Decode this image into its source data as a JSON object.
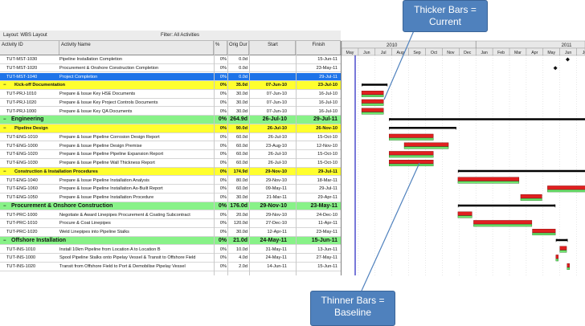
{
  "toolbar": {
    "layout_label": "Layout: WBS Layout",
    "filter_label": "Filter: All Activities"
  },
  "columns": {
    "id": "Activity ID",
    "name": "Activity Name",
    "pct": "%",
    "dur": "Orig Dur",
    "start": "Start",
    "finish": "Finish"
  },
  "rows": [
    {
      "type": "task",
      "id": "TUT-MST-1030",
      "name": "Pipeline Installation Completion",
      "pct": "0%",
      "dur": "0.0d",
      "start": "",
      "finish": "15-Jun-11"
    },
    {
      "type": "task",
      "id": "TUT-MST-1020",
      "name": "Procurement & Onshore Construction Completion",
      "pct": "0%",
      "dur": "0.0d",
      "start": "",
      "finish": "23-May-11"
    },
    {
      "type": "selected",
      "id": "TUT-MST-1040",
      "name": "Project Completion",
      "pct": "0%",
      "dur": "0.0d",
      "start": "",
      "finish": "29-Jul-11"
    },
    {
      "type": "yellow",
      "id": "",
      "name": "Kick-off Documentation",
      "pct": "0%",
      "dur": "35.0d",
      "start": "07-Jun-10",
      "finish": "23-Jul-10"
    },
    {
      "type": "task",
      "id": "TUT-PRJ-1010",
      "name": "Prepare & Issue Key HSE Documents",
      "pct": "0%",
      "dur": "30.0d",
      "start": "07-Jun-10",
      "finish": "16-Jul-10"
    },
    {
      "type": "task",
      "id": "TUT-PRJ-1020",
      "name": "Prepare & Issue Key Project Controls Documents",
      "pct": "0%",
      "dur": "30.0d",
      "start": "07-Jun-10",
      "finish": "16-Jul-10"
    },
    {
      "type": "task",
      "id": "TUT-PRJ-1000",
      "name": "Prepare & Issue Key QA Documents",
      "pct": "0%",
      "dur": "30.0d",
      "start": "07-Jun-10",
      "finish": "16-Jul-10"
    },
    {
      "type": "green",
      "id": "",
      "name": "Engineering",
      "pct": "0%",
      "dur": "264.9d",
      "start": "26-Jul-10",
      "finish": "29-Jul-11"
    },
    {
      "type": "yellow",
      "id": "",
      "name": "Pipeline Design",
      "pct": "0%",
      "dur": "90.0d",
      "start": "26-Jul-10",
      "finish": "26-Nov-10"
    },
    {
      "type": "task",
      "id": "TUT-ENG-1010",
      "name": "Prepare & Issue Pipeline Corrosion Design Report",
      "pct": "0%",
      "dur": "60.0d",
      "start": "26-Jul-10",
      "finish": "15-Oct-10"
    },
    {
      "type": "task",
      "id": "TUT-ENG-1000",
      "name": "Prepare & Issue Pipeline Design Premise",
      "pct": "0%",
      "dur": "60.0d",
      "start": "23-Aug-10",
      "finish": "12-Nov-10"
    },
    {
      "type": "task",
      "id": "TUT-ENG-1020",
      "name": "Prepare & Issue Pipeline Pipeline Expansion Report",
      "pct": "0%",
      "dur": "60.0d",
      "start": "26-Jul-10",
      "finish": "15-Oct-10"
    },
    {
      "type": "task",
      "id": "TUT-ENG-1030",
      "name": "Prepare & Issue Pipeline Wall Thickness Report",
      "pct": "0%",
      "dur": "60.0d",
      "start": "26-Jul-10",
      "finish": "15-Oct-10"
    },
    {
      "type": "yellow",
      "id": "",
      "name": "Construction & Installation Procedures",
      "pct": "0%",
      "dur": "174.9d",
      "start": "29-Nov-10",
      "finish": "29-Jul-11"
    },
    {
      "type": "task",
      "id": "TUT-ENG-1040",
      "name": "Prepare & Issue Pipeline Installation Analysis",
      "pct": "0%",
      "dur": "80.0d",
      "start": "29-Nov-10",
      "finish": "18-Mar-11"
    },
    {
      "type": "task",
      "id": "TUT-ENG-1060",
      "name": "Prepare & Issue Pipeline Installation As-Built Report",
      "pct": "0%",
      "dur": "60.0d",
      "start": "09-May-11",
      "finish": "29-Jul-11"
    },
    {
      "type": "task",
      "id": "TUT-ENG-1050",
      "name": "Prepare & Issue Pipeline Installation Procedure",
      "pct": "0%",
      "dur": "30.0d",
      "start": "21-Mar-11",
      "finish": "29-Apr-11"
    },
    {
      "type": "green",
      "id": "",
      "name": "Procurement & Onshore Construction",
      "pct": "0%",
      "dur": "176.0d",
      "start": "29-Nov-10",
      "finish": "23-May-11"
    },
    {
      "type": "task",
      "id": "TUT-PRC-1000",
      "name": "Negotiate & Award Linepipes Procurement & Coating Subcontract",
      "pct": "0%",
      "dur": "20.0d",
      "start": "29-Nov-10",
      "finish": "24-Dec-10"
    },
    {
      "type": "task",
      "id": "TUT-PRC-1010",
      "name": "Procure & Coat Linepipes",
      "pct": "0%",
      "dur": "120.0d",
      "start": "27-Dec-10",
      "finish": "11-Apr-11"
    },
    {
      "type": "task",
      "id": "TUT-PRC-1020",
      "name": "Weld Linepipes into Pipeline Stalks",
      "pct": "0%",
      "dur": "30.0d",
      "start": "12-Apr-11",
      "finish": "23-May-11"
    },
    {
      "type": "green",
      "id": "",
      "name": "Offshore Installation",
      "pct": "0%",
      "dur": "21.0d",
      "start": "24-May-11",
      "finish": "15-Jun-11"
    },
    {
      "type": "task",
      "id": "TUT-INS-1010",
      "name": "Install 10km Pipeline from Location A to Location B",
      "pct": "0%",
      "dur": "10.0d",
      "start": "31-May-11",
      "finish": "13-Jun-11"
    },
    {
      "type": "task",
      "id": "TUT-INS-1000",
      "name": "Spool Pipeline Stalks onto Pipelay Vessel & Transit to Offshore Field",
      "pct": "0%",
      "dur": "4.0d",
      "start": "24-May-11",
      "finish": "27-May-11"
    },
    {
      "type": "task",
      "id": "TUT-INS-1020",
      "name": "Transit from Offshore Field to Port & Demobilise Pipelay Vessel",
      "pct": "0%",
      "dur": "2.0d",
      "start": "14-Jun-11",
      "finish": "15-Jun-11"
    }
  ],
  "timeline": {
    "years": [
      "2010",
      "2011"
    ],
    "months": [
      "May",
      "Jun",
      "Jul",
      "Aug",
      "Sep",
      "Oct",
      "Nov",
      "Dec",
      "Jan",
      "Feb",
      "Mar",
      "Apr",
      "May",
      "Jun",
      "Jul"
    ]
  },
  "callouts": {
    "thicker": [
      "Thicker Bars =",
      "Current"
    ],
    "thinner": [
      "Thinner Bars =",
      "Baseline"
    ]
  },
  "colors": {
    "current_bar": "#e02020",
    "baseline_bar": "#6ee66e",
    "summary_bar": "#000000",
    "callout_fill": "#4f81bd",
    "data_date_line": "#2020c0"
  }
}
